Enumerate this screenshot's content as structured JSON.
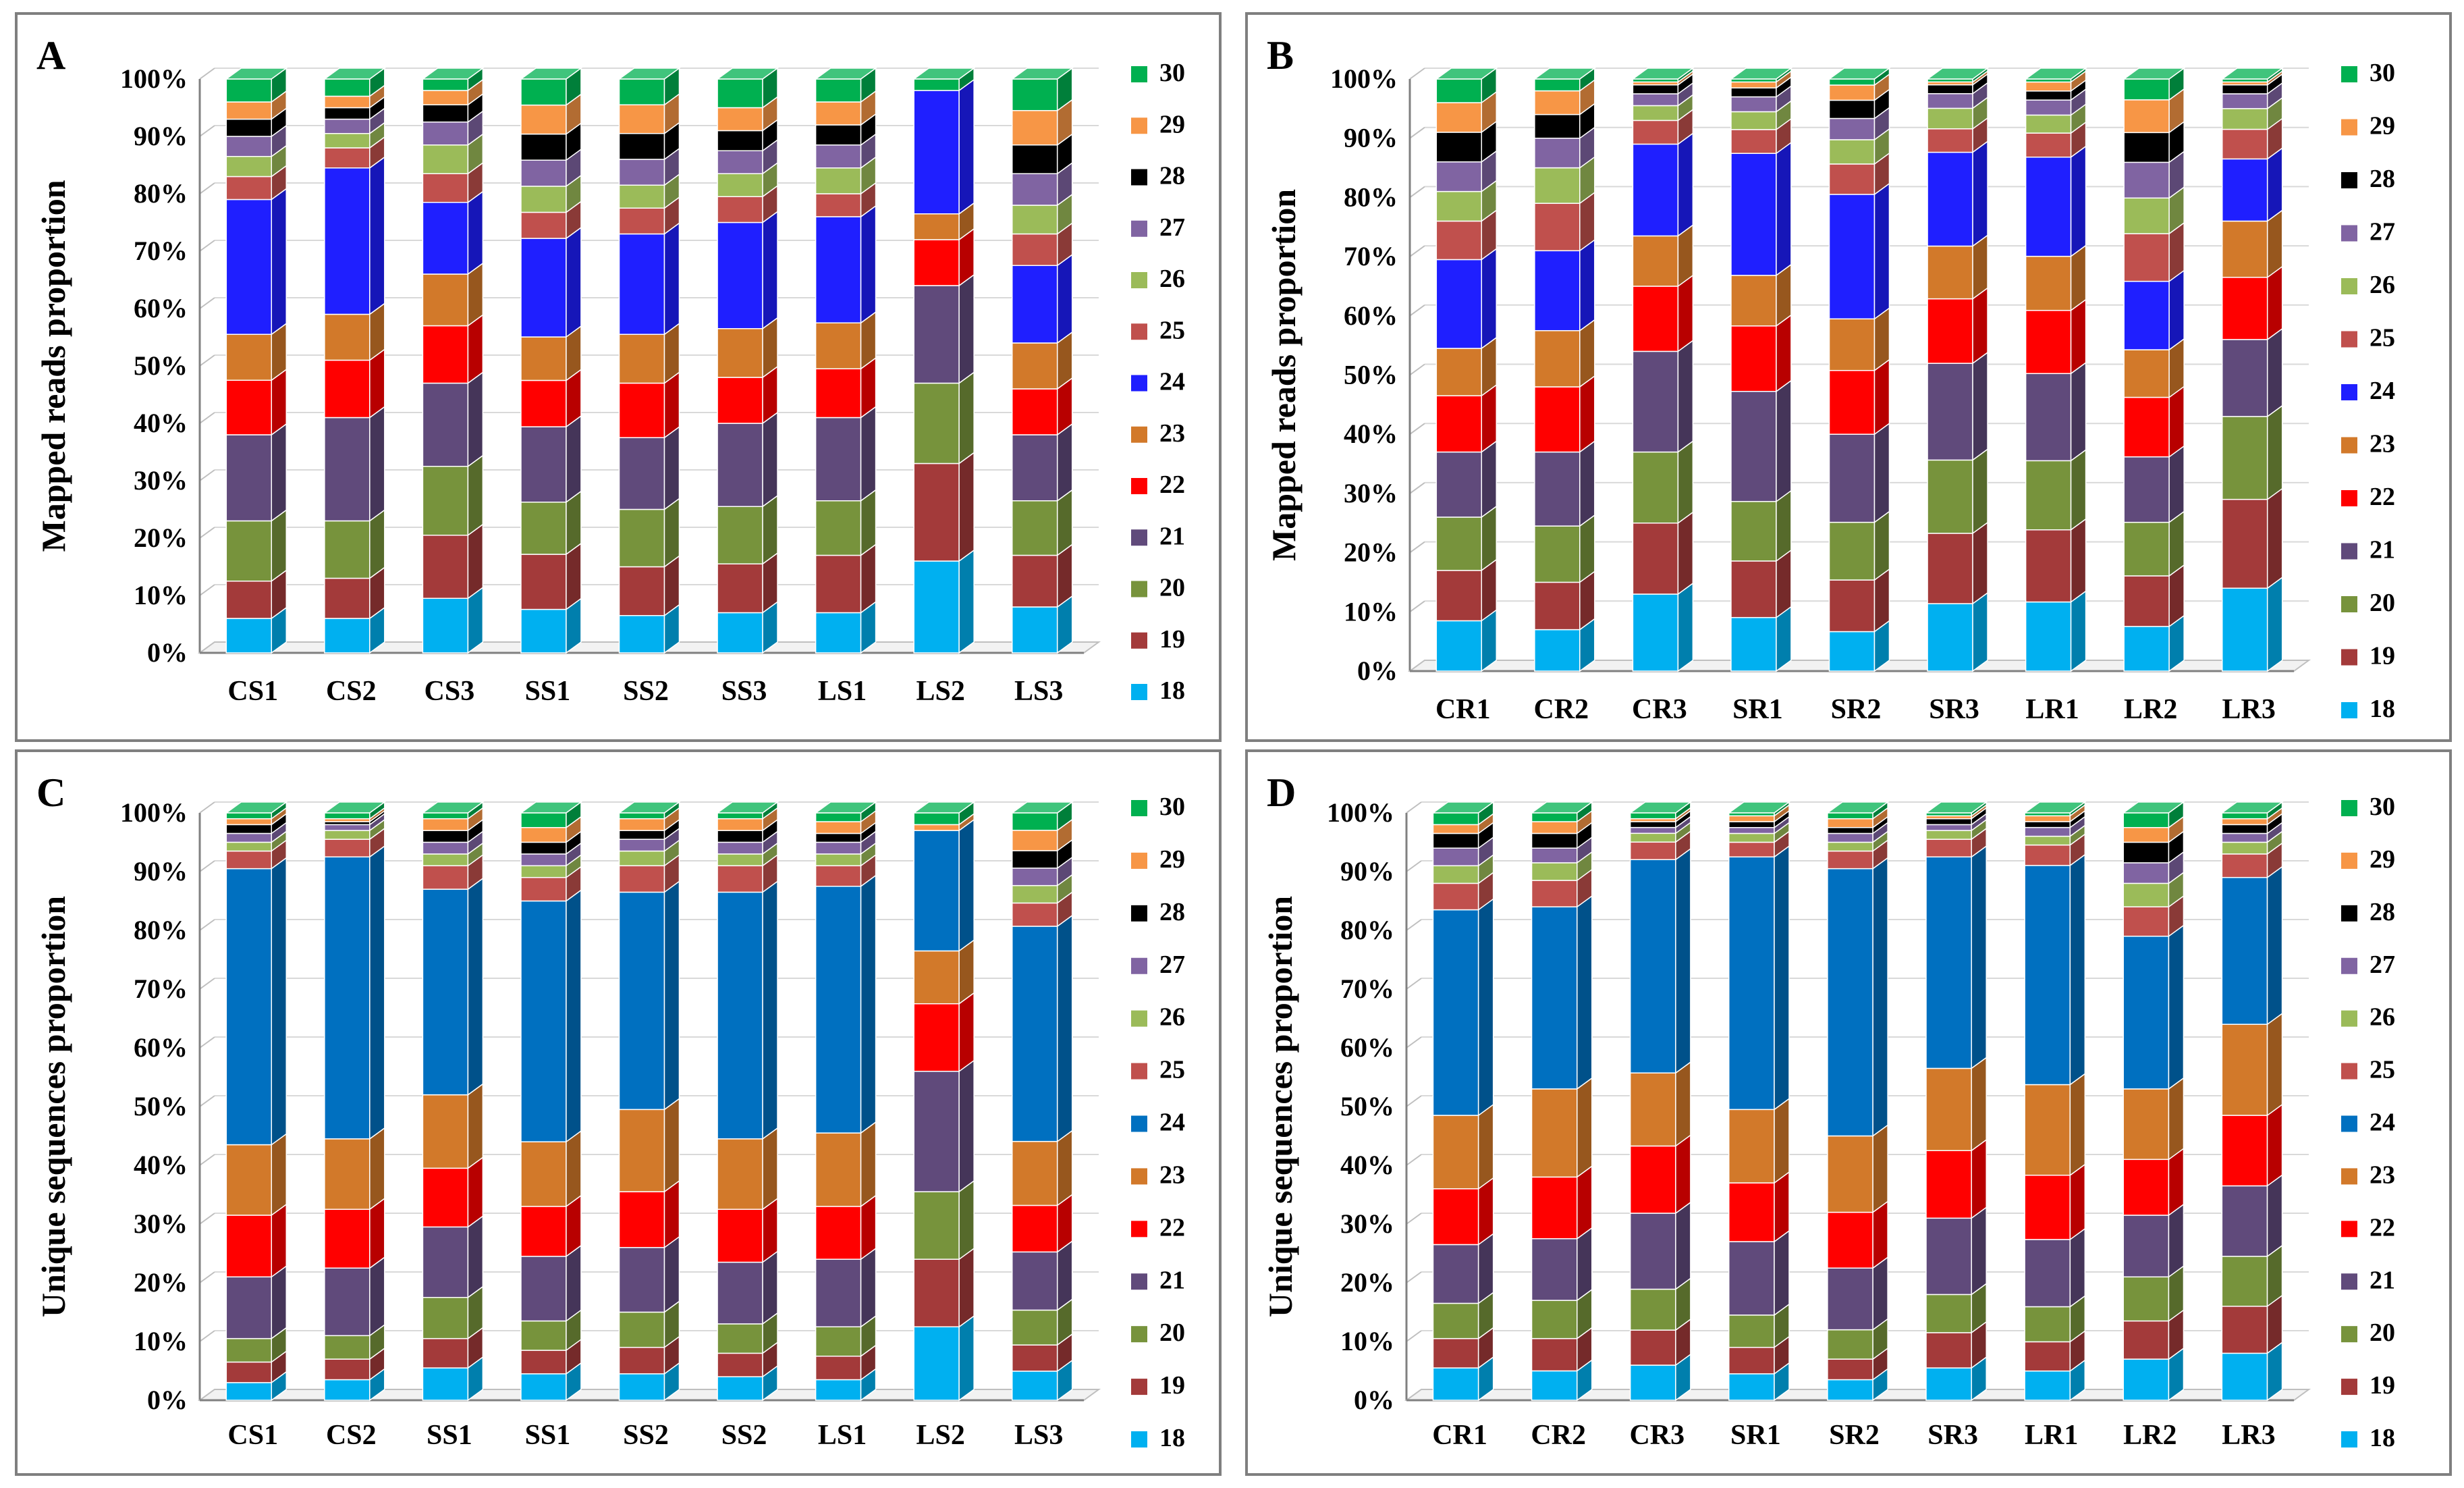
{
  "series_colors": {
    "18": "#00B0F0",
    "19": "#A33A3A",
    "20": "#77933C",
    "21": "#604A7B",
    "22": "#FF0000",
    "23": "#D2792A",
    "24": "#1F1FFF",
    "25": "#C0504D",
    "26": "#9BBB59",
    "27": "#8064A2",
    "28": "#000000",
    "29": "#F79646",
    "30": "#00B050"
  },
  "series_colors_unique": {
    "24": "#0070C0"
  },
  "chart_data": [
    {
      "type": "bar",
      "stacked": true,
      "panel": "A",
      "title": "",
      "xlabel": "",
      "ylabel": "Mapped reads proportion",
      "ylim": [
        0,
        100
      ],
      "yticks": [
        "0%",
        "10%",
        "20%",
        "30%",
        "40%",
        "50%",
        "60%",
        "70%",
        "80%",
        "90%",
        "100%"
      ],
      "categories": [
        "CS1",
        "CS2",
        "CS3",
        "SS1",
        "SS2",
        "SS3",
        "LS1",
        "LS2",
        "LS3"
      ],
      "legend_position": "right",
      "series": [
        {
          "name": "18",
          "values": [
            6,
            6,
            9.5,
            7.5,
            6.5,
            7,
            7,
            16,
            8
          ]
        },
        {
          "name": "19",
          "values": [
            6.5,
            7,
            11,
            9.5,
            8.5,
            8.5,
            10,
            17,
            9
          ]
        },
        {
          "name": "20",
          "values": [
            10.5,
            10,
            12,
            9,
            10,
            10,
            9.5,
            14,
            9.5
          ]
        },
        {
          "name": "21",
          "values": [
            15,
            18,
            14.5,
            13,
            12.5,
            14.5,
            14.5,
            17,
            11.5
          ]
        },
        {
          "name": "22",
          "values": [
            9.5,
            10,
            10,
            8,
            9.5,
            8,
            8.5,
            8,
            8
          ]
        },
        {
          "name": "23",
          "values": [
            8,
            8,
            9,
            7.5,
            8.5,
            8.5,
            8,
            4.5,
            8
          ]
        },
        {
          "name": "24",
          "values": [
            23.5,
            25.5,
            12.5,
            17,
            17.5,
            18.5,
            18.5,
            21.5,
            13.5
          ]
        },
        {
          "name": "25",
          "values": [
            4,
            3.5,
            5,
            4.5,
            4.5,
            4.5,
            4,
            0,
            5.5
          ]
        },
        {
          "name": "26",
          "values": [
            3.5,
            2.5,
            5,
            4.5,
            4,
            4,
            4.5,
            0,
            5
          ]
        },
        {
          "name": "27",
          "values": [
            3.5,
            2.5,
            4,
            4.5,
            4.5,
            4,
            4,
            0,
            5.5
          ]
        },
        {
          "name": "28",
          "values": [
            3,
            2,
            3,
            4.5,
            4.5,
            3.5,
            3.5,
            0,
            5
          ]
        },
        {
          "name": "29",
          "values": [
            3,
            2,
            2.5,
            5,
            5,
            4,
            4,
            0,
            6
          ]
        },
        {
          "name": "30",
          "values": [
            4,
            3,
            2,
            4.5,
            4.5,
            5,
            4,
            2,
            5.5
          ]
        }
      ]
    },
    {
      "type": "bar",
      "stacked": true,
      "panel": "B",
      "title": "",
      "xlabel": "",
      "ylabel": "Mapped reads proportion",
      "ylim": [
        0,
        100
      ],
      "yticks": [
        "0%",
        "10%",
        "20%",
        "30%",
        "40%",
        "50%",
        "60%",
        "70%",
        "80%",
        "90%",
        "100%"
      ],
      "categories": [
        "CR1",
        "CR2",
        "CR3",
        "SR1",
        "SR2",
        "SR3",
        "LR1",
        "LR2",
        "LR3"
      ],
      "legend_position": "right",
      "series": [
        {
          "name": "18",
          "values": [
            8.5,
            7,
            13,
            9,
            6.5,
            11.5,
            11.5,
            7.5,
            14
          ]
        },
        {
          "name": "19",
          "values": [
            8.5,
            8,
            12,
            9.5,
            8.5,
            12,
            12,
            8.5,
            15
          ]
        },
        {
          "name": "20",
          "values": [
            9,
            9.5,
            12,
            10,
            9.5,
            12.5,
            11.5,
            9,
            14
          ]
        },
        {
          "name": "21",
          "values": [
            11,
            12.5,
            17,
            18.5,
            14.5,
            16.5,
            14.5,
            11,
            13
          ]
        },
        {
          "name": "22",
          "values": [
            9.5,
            11,
            11,
            11,
            10.5,
            11,
            10.5,
            10,
            10.5
          ]
        },
        {
          "name": "23",
          "values": [
            8,
            9.5,
            8.5,
            8.5,
            8.5,
            9,
            9,
            8,
            9.5
          ]
        },
        {
          "name": "24",
          "values": [
            15,
            13.5,
            15.5,
            20.5,
            20.5,
            16,
            16.5,
            11.5,
            10.5
          ]
        },
        {
          "name": "25",
          "values": [
            6.5,
            8,
            4,
            4,
            5,
            4,
            4,
            8,
            5
          ]
        },
        {
          "name": "26",
          "values": [
            5,
            6,
            2.5,
            3,
            4,
            3.5,
            3,
            6,
            3.5
          ]
        },
        {
          "name": "27",
          "values": [
            5,
            5,
            2,
            2.5,
            3.5,
            2.5,
            2.5,
            6,
            2.5
          ]
        },
        {
          "name": "28",
          "values": [
            5,
            4,
            1.5,
            1.5,
            3,
            1.5,
            1.5,
            5,
            1.5
          ]
        },
        {
          "name": "29",
          "values": [
            5,
            4,
            0.5,
            1,
            2.5,
            0.5,
            1.5,
            5.5,
            0.5
          ]
        },
        {
          "name": "30",
          "values": [
            4,
            2,
            0.5,
            0.5,
            1,
            0.5,
            0.5,
            3.5,
            0.5
          ]
        }
      ]
    },
    {
      "type": "bar",
      "stacked": true,
      "panel": "C",
      "title": "",
      "xlabel": "",
      "ylabel": "Unique sequences proportion",
      "ylim": [
        0,
        100
      ],
      "yticks": [
        "0%",
        "10%",
        "20%",
        "30%",
        "40%",
        "50%",
        "60%",
        "70%",
        "80%",
        "90%",
        "100%"
      ],
      "categories": [
        "CS1",
        "CS2",
        "SS1",
        "SS1",
        "SS2",
        "SS2",
        "LS1",
        "LS2",
        "LS3"
      ],
      "legend_position": "right",
      "series": [
        {
          "name": "18",
          "values": [
            3,
            3.5,
            5.5,
            4.5,
            4.5,
            4,
            3.5,
            12.5,
            5
          ]
        },
        {
          "name": "19",
          "values": [
            3.5,
            3.5,
            5,
            4,
            4.5,
            4,
            4,
            11.5,
            4.5
          ]
        },
        {
          "name": "20",
          "values": [
            4,
            4,
            7,
            5,
            6,
            5,
            5,
            11.5,
            6
          ]
        },
        {
          "name": "21",
          "values": [
            10.5,
            11.5,
            12,
            11,
            11,
            10.5,
            11.5,
            20.5,
            10
          ]
        },
        {
          "name": "22",
          "values": [
            10.5,
            10,
            10,
            8.5,
            9.5,
            9,
            9,
            11.5,
            8
          ]
        },
        {
          "name": "23",
          "values": [
            12,
            12,
            12.5,
            11,
            14,
            12,
            12.5,
            9,
            11
          ]
        },
        {
          "name": "24",
          "values": [
            47,
            48,
            35,
            41,
            37,
            42,
            42,
            20.5,
            37
          ]
        },
        {
          "name": "25",
          "values": [
            3,
            3,
            4,
            4,
            4.5,
            4.5,
            3.5,
            0,
            4
          ]
        },
        {
          "name": "26",
          "values": [
            1.5,
            1.5,
            2,
            2,
            2.5,
            2,
            2,
            0,
            3
          ]
        },
        {
          "name": "27",
          "values": [
            1.5,
            1,
            2,
            2,
            2,
            2,
            2,
            0,
            3
          ]
        },
        {
          "name": "28",
          "values": [
            1.5,
            0.5,
            2,
            2,
            1.5,
            2,
            1.5,
            0,
            3
          ]
        },
        {
          "name": "29",
          "values": [
            1,
            0.5,
            2,
            2.5,
            2,
            2,
            2,
            1,
            3.5
          ]
        },
        {
          "name": "30",
          "values": [
            1,
            1,
            1,
            2.5,
            1,
            1,
            1.5,
            2,
            3
          ]
        }
      ]
    },
    {
      "type": "bar",
      "stacked": true,
      "panel": "D",
      "title": "",
      "xlabel": "",
      "ylabel": "Unique sequences proportion",
      "ylim": [
        0,
        100
      ],
      "yticks": [
        "0%",
        "10%",
        "20%",
        "30%",
        "40%",
        "50%",
        "60%",
        "70%",
        "80%",
        "90%",
        "100%"
      ],
      "categories": [
        "CR1",
        "CR2",
        "CR3",
        "SR1",
        "SR2",
        "SR3",
        "LR1",
        "LR2",
        "LR3"
      ],
      "legend_position": "right",
      "series": [
        {
          "name": "18",
          "values": [
            5.5,
            5,
            6,
            4.5,
            3.5,
            5.5,
            5,
            7,
            8
          ]
        },
        {
          "name": "19",
          "values": [
            5,
            5.5,
            6,
            4.5,
            3.5,
            6,
            5,
            6.5,
            8
          ]
        },
        {
          "name": "20",
          "values": [
            6,
            6.5,
            7,
            5.5,
            5,
            6.5,
            6,
            7.5,
            8.5
          ]
        },
        {
          "name": "21",
          "values": [
            10,
            10.5,
            13,
            12.5,
            10.5,
            13,
            11.5,
            10.5,
            12
          ]
        },
        {
          "name": "22",
          "values": [
            9.5,
            10.5,
            11.5,
            10,
            9.5,
            11.5,
            11,
            9.5,
            12
          ]
        },
        {
          "name": "23",
          "values": [
            12.5,
            15,
            12.5,
            12.5,
            13,
            14,
            15.5,
            12,
            15.5
          ]
        },
        {
          "name": "24",
          "values": [
            35,
            31,
            36.5,
            43,
            45.5,
            36,
            37.5,
            26,
            25
          ]
        },
        {
          "name": "25",
          "values": [
            4.5,
            4.5,
            3,
            2.5,
            3,
            3,
            3.5,
            5,
            4
          ]
        },
        {
          "name": "26",
          "values": [
            3,
            3,
            1.5,
            1.5,
            1.5,
            1.5,
            1.5,
            4,
            2
          ]
        },
        {
          "name": "27",
          "values": [
            3,
            2.5,
            1,
            1,
            1.5,
            1,
            1.5,
            3.5,
            1.5
          ]
        },
        {
          "name": "28",
          "values": [
            2.5,
            2.5,
            1,
            1,
            1,
            1,
            1,
            3.5,
            1.5
          ]
        },
        {
          "name": "29",
          "values": [
            1.5,
            2,
            0.5,
            1,
            1.5,
            0.5,
            1,
            2.5,
            1
          ]
        },
        {
          "name": "30",
          "values": [
            2,
            1.5,
            1,
            0.5,
            1,
            0.5,
            0.5,
            2.5,
            1
          ]
        }
      ]
    }
  ]
}
